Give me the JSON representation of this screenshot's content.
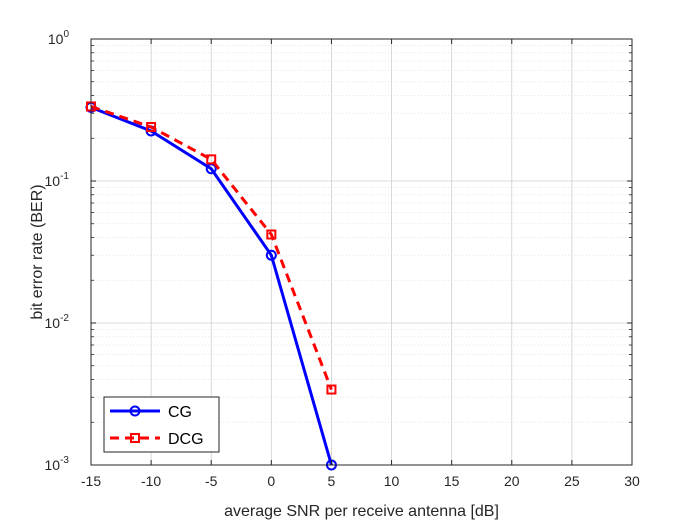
{
  "chart_data": {
    "type": "line",
    "xlabel": "average SNR per receive antenna [dB]",
    "ylabel": "bit error rate (BER)",
    "xlim": [
      -15,
      30
    ],
    "ylim": [
      0.001,
      1
    ],
    "yscale": "log",
    "grid": true,
    "x_ticks": [
      -15,
      -10,
      -5,
      0,
      5,
      10,
      15,
      20,
      25,
      30
    ],
    "x_tick_labels": [
      "-15",
      "-10",
      "-5",
      "0",
      "5",
      "10",
      "15",
      "20",
      "25",
      "30"
    ],
    "y_ticks": [
      {
        "value": 1,
        "base": "10",
        "exp": "0"
      },
      {
        "value": 0.1,
        "base": "10",
        "exp": "-1"
      },
      {
        "value": 0.01,
        "base": "10",
        "exp": "-2"
      },
      {
        "value": 0.001,
        "base": "10",
        "exp": "-3"
      }
    ],
    "legend_position": "bottom-left",
    "series": [
      {
        "name": "CG",
        "color": "#0000ff",
        "line_style": "solid",
        "marker": "circle",
        "x": [
          -15,
          -10,
          -5,
          0,
          5
        ],
        "y": [
          0.33,
          0.225,
          0.122,
          0.03,
          0.001
        ]
      },
      {
        "name": "DCG",
        "color": "#ff0000",
        "line_style": "dashed",
        "marker": "square",
        "x": [
          -15,
          -10,
          -5,
          0,
          5
        ],
        "y": [
          0.335,
          0.24,
          0.142,
          0.042,
          0.0034
        ]
      }
    ]
  }
}
